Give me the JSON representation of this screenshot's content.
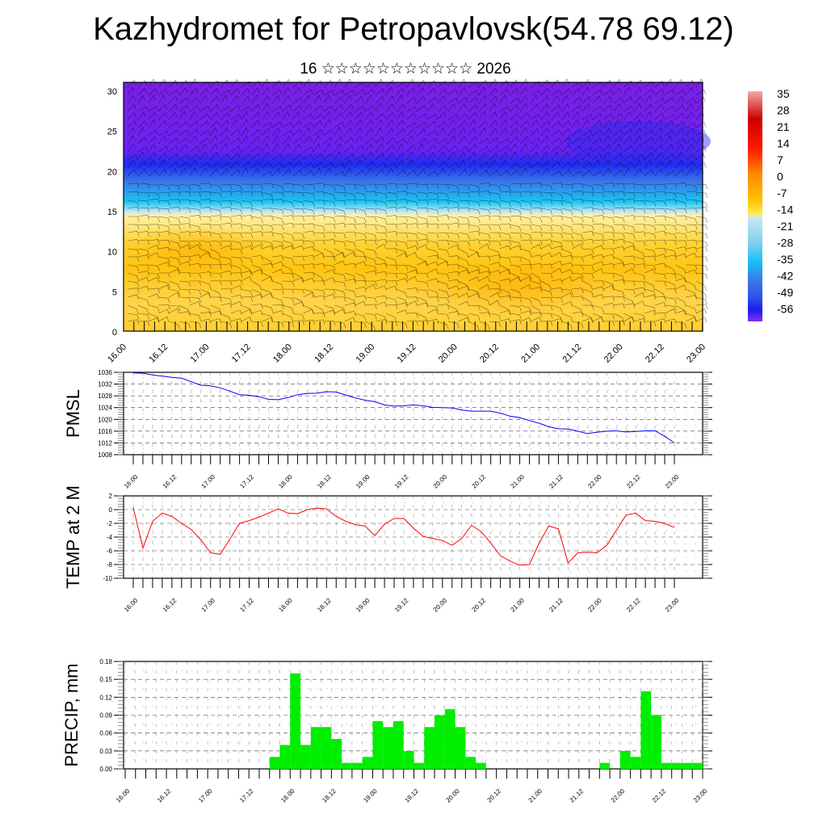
{
  "header": {
    "title": "Kazhydromet for Petropavlovsk(54.78 69.12)",
    "subtitle": "16 ☆☆☆☆☆☆☆☆☆☆☆ 2026"
  },
  "chart_data": [
    {
      "id": "cross_section",
      "type": "heatmap",
      "title": "",
      "xlabel": "",
      "ylabel": "",
      "x_tick_labels": [
        "16.00",
        "16.12",
        "17.00",
        "17.12",
        "18.00",
        "18.12",
        "19.00",
        "19.12",
        "20.00",
        "20.12",
        "21.00",
        "21.12",
        "22.00",
        "22.12",
        "23.00"
      ],
      "y_tick_labels": [
        "0",
        "5",
        "10",
        "15",
        "20",
        "25",
        "30"
      ],
      "ylim": [
        0,
        31
      ],
      "overlay": "wind barbs",
      "colorbar": {
        "labels": [
          "35",
          "28",
          "21",
          "14",
          "7",
          "0",
          "-7",
          "-14",
          "-21",
          "-28",
          "-35",
          "-42",
          "-49",
          "-56"
        ],
        "range": [
          -60,
          38
        ]
      },
      "description": "Temperature shading by height: warm (yellow/orange, about -10 to 0) below ~14, cold (blue, -14 to -49) between ~14 and ~21, very cold (purple, -56 and below) above ~21"
    },
    {
      "id": "pmsl",
      "type": "line",
      "ylabel": "PMSL",
      "xlabel": "",
      "x_tick_labels": [
        "16.00",
        "16.12",
        "17.00",
        "17.12",
        "18.00",
        "18.12",
        "19.00",
        "19.12",
        "20.00",
        "20.12",
        "21.00",
        "21.12",
        "22.00",
        "22.12",
        "23.00"
      ],
      "y_tick_labels": [
        "1008",
        "1012",
        "1016",
        "1020",
        "1024",
        "1028",
        "1032",
        "1036"
      ],
      "ylim": [
        1008,
        1036
      ],
      "x_step_hours": 3,
      "series": [
        {
          "name": "PMSL",
          "color": "#0000ff",
          "values": [
            1035.8,
            1035.7,
            1035.1,
            1034.7,
            1034.3,
            1034.0,
            1032.8,
            1031.6,
            1031.4,
            1030.7,
            1029.6,
            1028.4,
            1028.2,
            1027.7,
            1026.8,
            1026.7,
            1027.4,
            1028.4,
            1028.8,
            1028.9,
            1029.4,
            1029.3,
            1028.3,
            1027.3,
            1026.5,
            1026.0,
            1024.9,
            1024.5,
            1024.6,
            1024.9,
            1024.6,
            1024.1,
            1024.0,
            1023.9,
            1023.2,
            1022.8,
            1022.8,
            1022.8,
            1022.1,
            1021.1,
            1020.6,
            1019.6,
            1018.7,
            1017.5,
            1016.8,
            1016.7,
            1016.0,
            1015.2,
            1015.6,
            1016.0,
            1016.1,
            1015.7,
            1015.9,
            1016.1,
            1016.1,
            1014.3,
            1012.0
          ]
        }
      ]
    },
    {
      "id": "temp2m",
      "type": "line",
      "ylabel": "TEMP at 2 M",
      "xlabel": "",
      "x_tick_labels": [
        "16.00",
        "16.12",
        "17.00",
        "17.12",
        "18.00",
        "18.12",
        "19.00",
        "19.12",
        "20.00",
        "20.12",
        "21.00",
        "21.12",
        "22.00",
        "22.12",
        "23.00"
      ],
      "y_tick_labels": [
        "-10",
        "-8",
        "-6",
        "-4",
        "-2",
        "0",
        "2"
      ],
      "ylim": [
        -10,
        2
      ],
      "x_step_hours": 3,
      "series": [
        {
          "name": "TEMP at 2 M",
          "color": "#ff0000",
          "values": [
            0.3,
            -5.6,
            -1.7,
            -0.5,
            -1.0,
            -2.0,
            -2.9,
            -4.4,
            -6.3,
            -6.5,
            -4.3,
            -2.0,
            -1.6,
            -1.1,
            -0.5,
            0.1,
            -0.5,
            -0.6,
            0.0,
            0.2,
            0.1,
            -1.0,
            -1.7,
            -2.2,
            -2.4,
            -3.8,
            -2.1,
            -1.3,
            -1.3,
            -2.7,
            -3.9,
            -4.2,
            -4.5,
            -5.2,
            -4.2,
            -2.3,
            -3.2,
            -4.9,
            -6.7,
            -7.5,
            -8.1,
            -8.0,
            -4.9,
            -2.4,
            -2.8,
            -7.8,
            -6.3,
            -6.2,
            -6.3,
            -5.2,
            -3.0,
            -0.8,
            -0.5,
            -1.6,
            -1.7,
            -2.0,
            -2.6
          ]
        }
      ]
    },
    {
      "id": "precip",
      "type": "bar",
      "ylabel": "PRECIP, mm",
      "xlabel": "",
      "x_tick_labels": [
        "16.00",
        "16.12",
        "17.00",
        "17.12",
        "18.00",
        "18.12",
        "19.00",
        "19.12",
        "20.00",
        "20.12",
        "21.00",
        "21.12",
        "22.00",
        "22.12",
        "23.00"
      ],
      "y_tick_labels": [
        "0.00",
        "0.03",
        "0.06",
        "0.09",
        "0.12",
        "0.15",
        "0.18"
      ],
      "ylim": [
        0,
        0.18
      ],
      "x_step_hours": 3,
      "series": [
        {
          "name": "PRECIP",
          "color": "#00ee00",
          "values": [
            0,
            0,
            0,
            0,
            0,
            0,
            0,
            0,
            0,
            0,
            0,
            0,
            0,
            0,
            0.02,
            0.04,
            0.16,
            0.04,
            0.07,
            0.07,
            0.05,
            0.01,
            0.01,
            0.02,
            0.08,
            0.07,
            0.08,
            0.03,
            0.01,
            0.07,
            0.09,
            0.1,
            0.07,
            0.02,
            0.01,
            0,
            0,
            0,
            0,
            0,
            0,
            0,
            0,
            0,
            0,
            0,
            0.01,
            0,
            0.03,
            0.02,
            0.13,
            0.09,
            0.01,
            0.01,
            0.01,
            0.01
          ]
        }
      ]
    }
  ]
}
